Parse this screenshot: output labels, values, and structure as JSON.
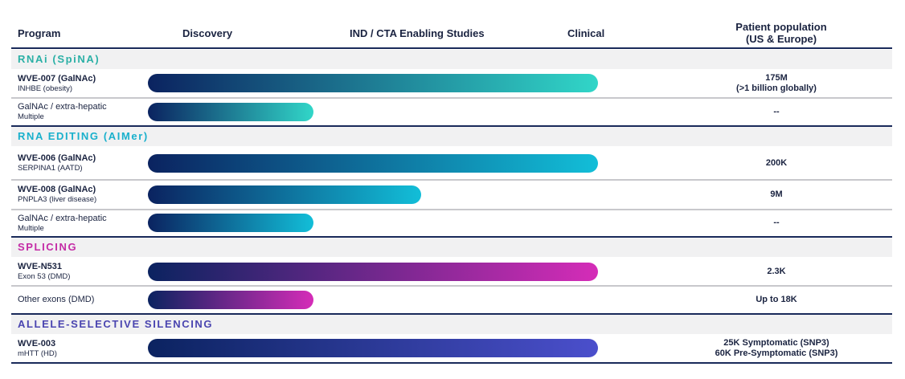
{
  "header": {
    "program": "Program",
    "discovery": "Discovery",
    "ind": "IND / CTA Enabling Studies",
    "clinical": "Clinical",
    "population": [
      "Patient population",
      "(US & Europe)"
    ]
  },
  "sections": [
    {
      "title": "RNAi (SpiNA)",
      "rows": [
        {
          "name": "WVE-007 (GalNAc)",
          "target": "INHBE (obesity)",
          "population": [
            "175M",
            "(>1 billion globally)"
          ]
        },
        {
          "name": "GalNAc / extra-hepatic",
          "target": "Multiple",
          "population": [
            "--"
          ]
        }
      ]
    },
    {
      "title": "RNA EDITING (AIMer)",
      "rows": [
        {
          "name": "WVE-006 (GalNAc)",
          "target": "SERPINA1 (AATD)",
          "population": [
            "200K"
          ]
        },
        {
          "name": "WVE-008 (GalNAc)",
          "target": "PNPLA3 (liver disease)",
          "population": [
            "9M"
          ]
        },
        {
          "name": "GalNAc / extra-hepatic",
          "target": "Multiple",
          "population": [
            "--"
          ]
        }
      ]
    },
    {
      "title": "SPLICING",
      "rows": [
        {
          "name": "WVE-N531",
          "target": "Exon 53 (DMD)",
          "population": [
            "2.3K"
          ]
        },
        {
          "name": "Other exons (DMD)",
          "population": [
            "Up to 18K"
          ]
        }
      ]
    },
    {
      "title": "ALLELE-SELECTIVE SILENCING",
      "rows": [
        {
          "name": "WVE-003",
          "target": "mHTT (HD)",
          "population": [
            "25K Symptomatic (SNP3)",
            "60K Pre-Symptomatic (SNP3)"
          ]
        }
      ]
    }
  ]
}
